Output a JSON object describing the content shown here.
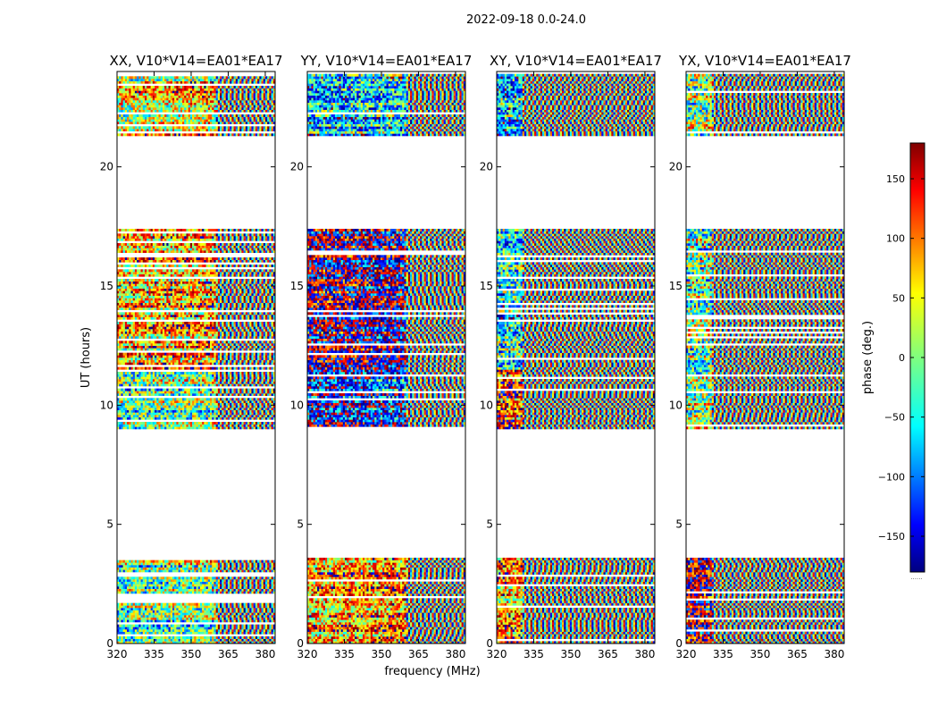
{
  "figure_title": "2022-09-18 0.0-24.0",
  "colors": {
    "axes": "#000000",
    "background": "#ffffff",
    "colormap": [
      "#00007f",
      "#0000ff",
      "#007fff",
      "#00ffff",
      "#7fff7f",
      "#ffff00",
      "#ff7f00",
      "#ff0000",
      "#7f0000"
    ]
  },
  "chart_data": {
    "type": "heatmap",
    "xlabel": "frequency (MHz)",
    "ylabel": "UT (hours)",
    "xlim": [
      320,
      384
    ],
    "ylim": [
      0,
      24
    ],
    "x_ticks": [
      320,
      335,
      350,
      365,
      380
    ],
    "y_ticks": [
      0,
      5,
      10,
      15,
      20
    ],
    "colorbar": {
      "label": "phase (deg.)",
      "range": [
        -180,
        180
      ],
      "ticks": [
        150,
        100,
        50,
        0,
        -50,
        -100,
        -150
      ],
      "tick_labels": [
        "150",
        "100",
        "50",
        "0",
        "−50",
        "−100",
        "−150"
      ],
      "bottom_marker": "......"
    },
    "data_time_ranges_hours": [
      [
        0.0,
        3.6
      ],
      [
        9.0,
        11.5
      ],
      [
        11.5,
        17.4
      ],
      [
        21.3,
        23.9
      ]
    ],
    "panels": [
      {
        "title": "XX, V10*V14=EA01*EA17",
        "smooth_until_mhz": 360
      },
      {
        "title": "YY, V10*V14=EA01*EA17",
        "smooth_until_mhz": 360
      },
      {
        "title": "XY, V10*V14=EA01*EA17",
        "smooth_until_mhz": 330
      },
      {
        "title": "YX, V10*V14=EA01*EA17",
        "smooth_until_mhz": 330
      }
    ]
  }
}
